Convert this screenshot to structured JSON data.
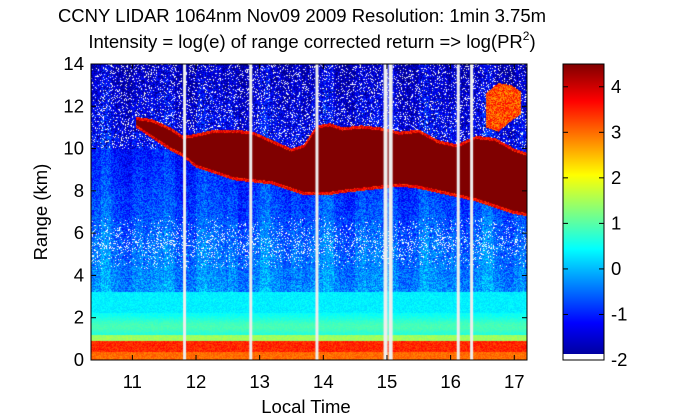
{
  "chart_data": {
    "type": "heatmap",
    "title_line1": "CCNY LIDAR 1064nm Nov09 2009 Resolution: 1min 3.75m",
    "title_line2_prefix": "Intensity = log(e) of range corrected return => log(PR",
    "title_line2_sup": "2",
    "title_line2_suffix": ")",
    "xlabel": "Local Time",
    "ylabel": "Range (km)",
    "xlim": [
      10.35,
      17.2
    ],
    "ylim": [
      0,
      14
    ],
    "x_ticks": [
      11,
      12,
      13,
      14,
      15,
      16,
      17
    ],
    "x_tick_labels": [
      "11",
      "12",
      "13",
      "14",
      "15",
      "16",
      "17"
    ],
    "y_ticks": [
      0,
      2,
      4,
      6,
      8,
      10,
      12,
      14
    ],
    "y_tick_labels": [
      "0",
      "2",
      "4",
      "6",
      "8",
      "10",
      "12",
      "14"
    ],
    "colorbar": {
      "range": [
        -2,
        4.5
      ],
      "ticks": [
        -2,
        -1,
        0,
        1,
        2,
        3,
        4
      ],
      "tick_labels": [
        "-2",
        "-1",
        "0",
        "1",
        "2",
        "3",
        "4"
      ],
      "colormap": "jet"
    },
    "cloud_layer": {
      "description_values": "cloud base and top (km) over time (h)",
      "time": [
        11.05,
        11.3,
        11.6,
        11.8,
        12.0,
        12.3,
        12.6,
        12.9,
        13.2,
        13.5,
        13.7,
        13.9,
        14.1,
        14.3,
        14.6,
        14.9,
        15.2,
        15.5,
        15.8,
        16.1,
        16.4,
        16.7,
        17.0,
        17.2
      ],
      "base": [
        11.0,
        10.5,
        9.9,
        9.6,
        9.1,
        8.8,
        8.5,
        8.4,
        8.3,
        8.0,
        7.8,
        7.8,
        7.8,
        7.9,
        8.0,
        8.1,
        8.2,
        8.1,
        7.9,
        7.7,
        7.5,
        7.2,
        6.9,
        6.8
      ],
      "top": [
        11.5,
        11.4,
        11.0,
        10.6,
        10.7,
        10.9,
        10.9,
        10.8,
        10.4,
        10.0,
        10.2,
        11.1,
        11.2,
        11.0,
        11.1,
        11.0,
        10.8,
        10.9,
        10.4,
        10.2,
        10.6,
        10.5,
        10.0,
        9.8
      ],
      "intensity": 4.5
    },
    "upper_cloud": {
      "time": [
        16.55,
        16.75,
        16.95,
        17.1
      ],
      "base": [
        11.0,
        10.8,
        11.3,
        11.6
      ],
      "top": [
        12.6,
        13.1,
        13.0,
        12.7
      ],
      "intensity": 3.8
    },
    "gaps_hours": [
      11.82,
      12.86,
      13.9,
      14.97,
      15.05,
      16.12,
      16.33
    ]
  }
}
